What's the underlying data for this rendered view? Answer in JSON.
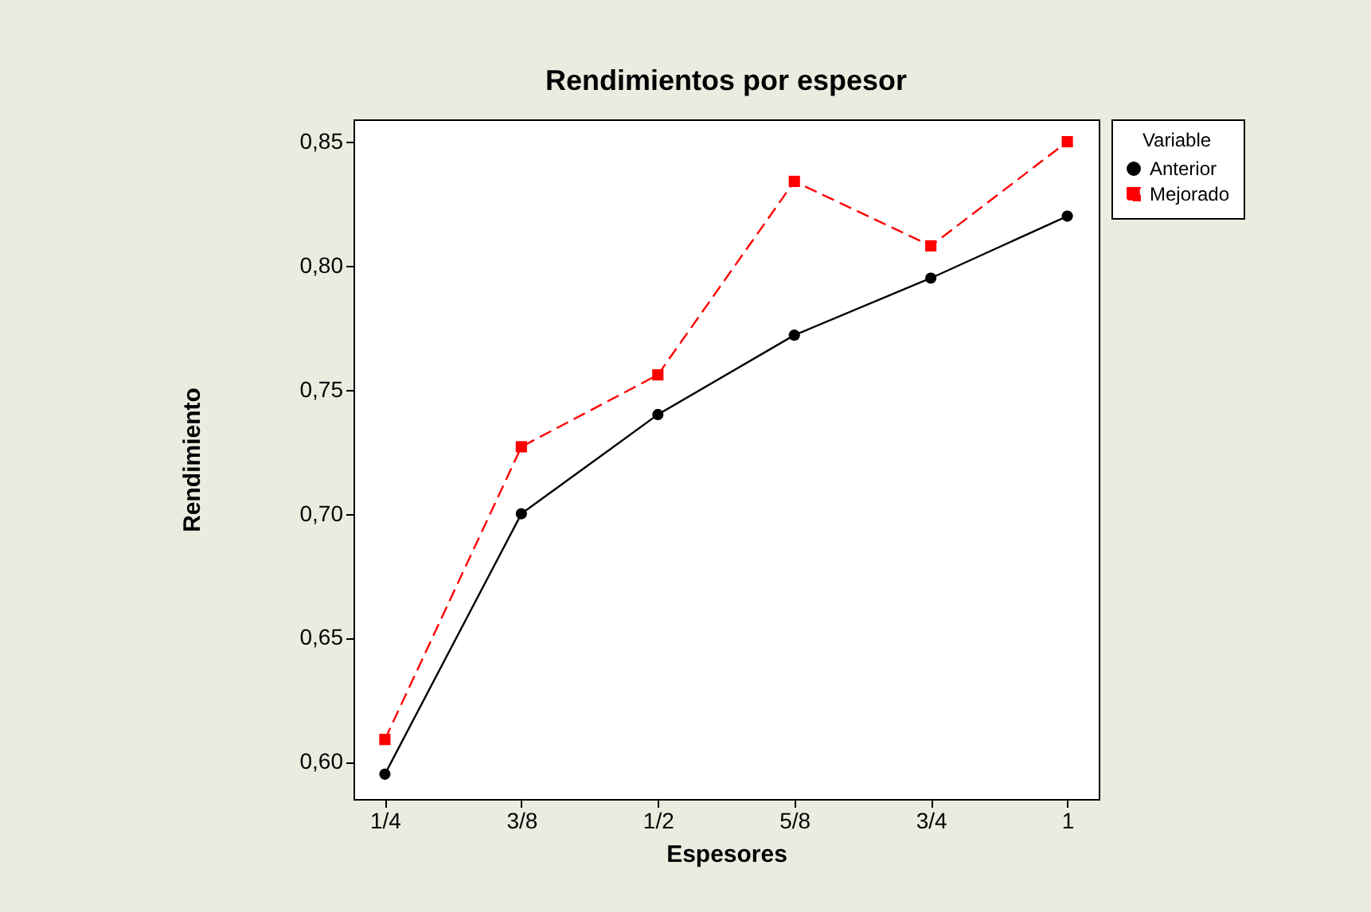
{
  "chart_data": {
    "type": "line",
    "title": "Rendimientos por espesor",
    "xlabel": "Espesores",
    "ylabel": "Rendimiento",
    "legend_title": "Variable",
    "legend": "top right",
    "grid": false,
    "categories": [
      "1/4",
      "3/8",
      "1/2",
      "5/8",
      "3/4",
      "1"
    ],
    "ylim": [
      0.585,
      0.859
    ],
    "yticks": [
      {
        "value": 0.6,
        "label": "0,60"
      },
      {
        "value": 0.65,
        "label": "0,65"
      },
      {
        "value": 0.7,
        "label": "0,70"
      },
      {
        "value": 0.75,
        "label": "0,75"
      },
      {
        "value": 0.8,
        "label": "0,80"
      },
      {
        "value": 0.85,
        "label": "0,85"
      }
    ],
    "series": [
      {
        "name": "Anterior",
        "color": "#000000",
        "marker": "circle",
        "line_style": "solid",
        "values": [
          0.595,
          0.7,
          0.74,
          0.772,
          0.795,
          0.82
        ]
      },
      {
        "name": "Mejorado",
        "color": "#ff0000",
        "marker": "square",
        "line_style": "dashed",
        "values": [
          0.609,
          0.727,
          0.756,
          0.834,
          0.808,
          0.85
        ]
      }
    ]
  }
}
